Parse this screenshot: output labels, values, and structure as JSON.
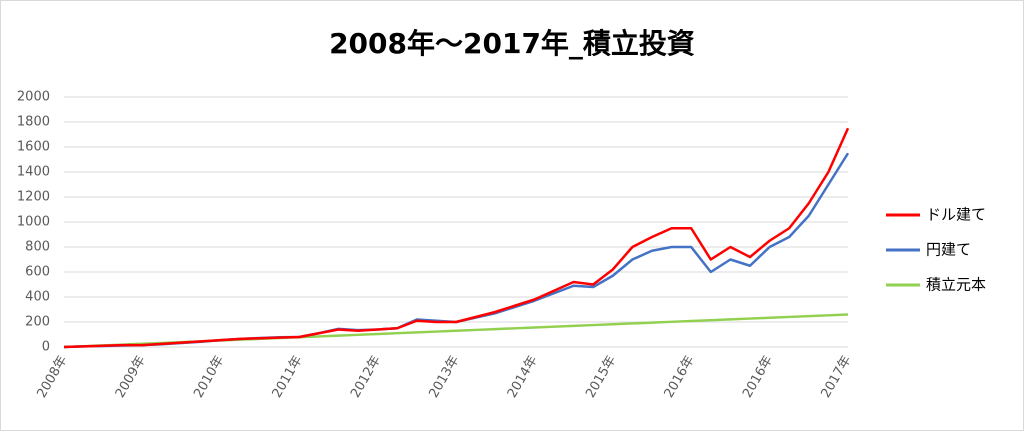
{
  "chart_data": {
    "type": "line",
    "title": "2008年～2017年_積立投資",
    "categories": [
      "2008年",
      null,
      null,
      null,
      "2009年",
      null,
      null,
      null,
      "2010年",
      null,
      null,
      null,
      "2011年",
      null,
      null,
      null,
      "2012年",
      null,
      null,
      null,
      "2013年",
      null,
      null,
      null,
      "2014年",
      null,
      null,
      null,
      "2015年",
      null,
      null,
      null,
      "2016年",
      null,
      null,
      null,
      "2016年",
      null,
      null,
      null,
      "2017年"
    ],
    "series": [
      {
        "name": "ドル建て",
        "color": "#ff0000",
        "values": [
          0,
          5,
          10,
          15,
          15,
          25,
          35,
          45,
          55,
          65,
          70,
          75,
          80,
          110,
          140,
          130,
          140,
          150,
          210,
          200,
          200,
          240,
          280,
          330,
          380,
          450,
          520,
          500,
          620,
          800,
          880,
          950,
          950,
          700,
          800,
          720,
          850,
          950,
          1150,
          1400,
          1750
        ]
      },
      {
        "name": "円建て",
        "color": "#4472c4",
        "values": [
          0,
          5,
          8,
          12,
          15,
          22,
          32,
          42,
          55,
          65,
          72,
          78,
          80,
          110,
          145,
          135,
          140,
          150,
          220,
          210,
          200,
          235,
          270,
          320,
          370,
          430,
          490,
          480,
          570,
          700,
          770,
          800,
          800,
          600,
          700,
          650,
          800,
          880,
          1050,
          1300,
          1550
        ]
      },
      {
        "name": "積立元本",
        "color": "#92d050",
        "values": [
          0,
          6.5,
          13,
          19.5,
          26,
          32.5,
          39,
          45.5,
          52,
          58.5,
          65,
          71.5,
          78,
          84.5,
          91,
          97.5,
          104,
          110.5,
          117,
          123.5,
          130,
          136.5,
          143,
          149.5,
          156,
          162.5,
          169,
          175.5,
          182,
          188.5,
          195,
          201.5,
          208,
          214.5,
          221,
          227.5,
          234,
          240.5,
          247,
          253.5,
          260
        ]
      }
    ],
    "ylim": [
      0,
      2000
    ],
    "yticks": [
      0,
      200,
      400,
      600,
      800,
      1000,
      1200,
      1400,
      1600,
      1800,
      2000
    ],
    "grid": true
  }
}
